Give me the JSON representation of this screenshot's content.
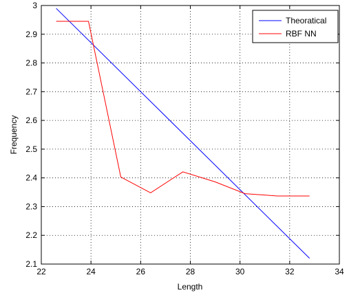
{
  "chart_data": {
    "type": "line",
    "xlabel": "Length",
    "ylabel": "Frequency",
    "xlim": [
      22,
      34
    ],
    "ylim": [
      2.1,
      3.0
    ],
    "xticks": [
      "22",
      "24",
      "26",
      "28",
      "30",
      "32",
      "34"
    ],
    "yticks": [
      "2.1",
      "2.2",
      "2.3",
      "2.4",
      "2.5",
      "2.6",
      "2.7",
      "2.8",
      "2.9",
      "3"
    ],
    "grid": true,
    "legend_position": "top-right",
    "series": [
      {
        "name": "Theoratical",
        "color": "#0000ff",
        "x": [
          22.6,
          32.8
        ],
        "y": [
          2.99,
          2.12
        ]
      },
      {
        "name": "RBF NN",
        "color": "#ff0000",
        "x": [
          22.6,
          23.9,
          25.2,
          26.4,
          27.7,
          29.0,
          30.2,
          31.5,
          32.8
        ],
        "y": [
          2.945,
          2.945,
          2.403,
          2.348,
          2.421,
          2.386,
          2.345,
          2.337,
          2.337
        ]
      }
    ]
  }
}
